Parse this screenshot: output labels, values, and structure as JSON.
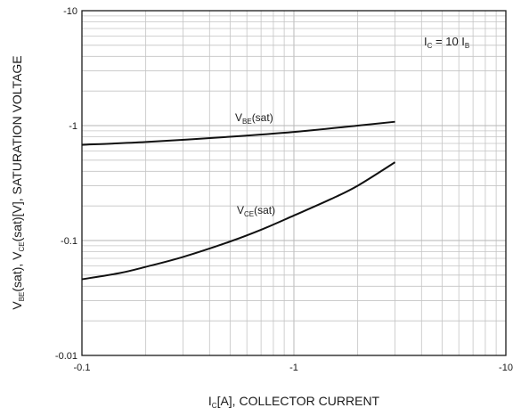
{
  "chart_data": {
    "type": "line",
    "xscale": "log",
    "yscale": "log",
    "xlim": [
      -0.1,
      -10
    ],
    "ylim": [
      -0.01,
      -10
    ],
    "grid": true,
    "xlabel": {
      "main": "I",
      "sub": "C",
      "rest": "[A], COLLECTOR CURRENT"
    },
    "ylabel": {
      "p1": "V",
      "s1": "BE",
      "p2": "(sat), V",
      "s2": "CE",
      "p3": "(sat)[V], SATURATION VOLTAGE"
    },
    "xticks": [
      "-0.1",
      "-1",
      "-10"
    ],
    "yticks": [
      "-0.01",
      "-0.1",
      "-1",
      "-10"
    ],
    "annotation": {
      "p1": "I",
      "s1": "C",
      "p2": " = 10 I",
      "s2": "B"
    },
    "series": [
      {
        "name": "VBE(sat)",
        "label": {
          "p1": "V",
          "s1": "BE",
          "p2": "(sat)"
        },
        "x": [
          -0.1,
          -0.2,
          -0.5,
          -1,
          -2,
          -3
        ],
        "y": [
          -0.68,
          -0.72,
          -0.8,
          -0.88,
          -1.0,
          -1.08
        ]
      },
      {
        "name": "VCE(sat)",
        "label": {
          "p1": "V",
          "s1": "CE",
          "p2": "(sat)"
        },
        "x": [
          -0.1,
          -0.15,
          -0.2,
          -0.3,
          -0.5,
          -0.7,
          -1,
          -1.5,
          -2,
          -3
        ],
        "y": [
          -0.046,
          -0.052,
          -0.059,
          -0.072,
          -0.098,
          -0.124,
          -0.165,
          -0.23,
          -0.3,
          -0.48
        ]
      }
    ]
  }
}
